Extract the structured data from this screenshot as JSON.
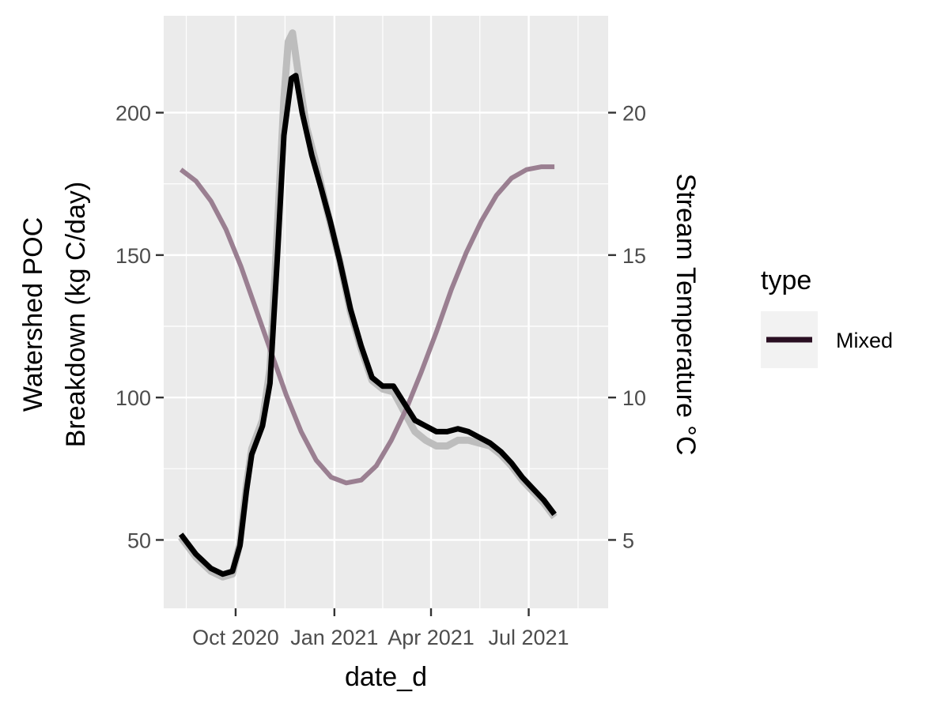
{
  "chart_data": {
    "type": "line",
    "x_axis": {
      "label": "date_d",
      "ticks": [
        "2020-10-01",
        "2021-01-01",
        "2021-04-01",
        "2021-07-01"
      ],
      "tick_labels": [
        "Oct 2020",
        "Jan 2021",
        "Apr 2021",
        "Jul 2021"
      ],
      "range": [
        "2020-07-26",
        "2021-09-13"
      ]
    },
    "y_left": {
      "label_lines": [
        "Watershed POC",
        "Breakdown (kg C/day)"
      ],
      "ticks": [
        50,
        100,
        150,
        200
      ],
      "range": [
        26,
        234
      ]
    },
    "y_right": {
      "label": "Stream Temperature °C",
      "ticks": [
        5,
        10,
        15,
        20
      ],
      "range": [
        2.6,
        23.4
      ]
    },
    "grid": true,
    "legend": {
      "title": "type",
      "position": "right",
      "entries": [
        {
          "label": "Mixed",
          "color": "#2a0f22"
        }
      ]
    },
    "series": [
      {
        "name": "Mixed",
        "axis": "left",
        "color": "#000000",
        "points": [
          [
            "2020-08-11",
            52
          ],
          [
            "2020-08-25",
            45
          ],
          [
            "2020-09-08",
            40
          ],
          [
            "2020-09-19",
            38
          ],
          [
            "2020-09-28",
            39
          ],
          [
            "2020-10-05",
            48
          ],
          [
            "2020-10-11",
            67
          ],
          [
            "2020-10-16",
            80
          ],
          [
            "2020-10-26",
            90
          ],
          [
            "2020-11-02",
            105
          ],
          [
            "2020-11-09",
            150
          ],
          [
            "2020-11-15",
            192
          ],
          [
            "2020-11-22",
            212
          ],
          [
            "2020-11-26",
            213
          ],
          [
            "2020-12-02",
            200
          ],
          [
            "2020-12-11",
            185
          ],
          [
            "2020-12-20",
            173
          ],
          [
            "2020-12-28",
            162
          ],
          [
            "2021-01-06",
            148
          ],
          [
            "2021-01-16",
            131
          ],
          [
            "2021-01-26",
            118
          ],
          [
            "2021-02-05",
            107
          ],
          [
            "2021-02-15",
            104
          ],
          [
            "2021-02-25",
            104
          ],
          [
            "2021-03-07",
            98
          ],
          [
            "2021-03-17",
            92
          ],
          [
            "2021-03-27",
            90
          ],
          [
            "2021-04-06",
            88
          ],
          [
            "2021-04-16",
            88
          ],
          [
            "2021-04-26",
            89
          ],
          [
            "2021-05-06",
            88
          ],
          [
            "2021-05-16",
            86
          ],
          [
            "2021-05-26",
            84
          ],
          [
            "2021-06-05",
            81
          ],
          [
            "2021-06-15",
            77
          ],
          [
            "2021-06-25",
            72
          ],
          [
            "2021-07-05",
            68
          ],
          [
            "2021-07-15",
            64
          ],
          [
            "2021-07-25",
            59
          ]
        ]
      },
      {
        "name": "",
        "axis": "left",
        "color": "#bdbdbd",
        "points": [
          [
            "2020-08-11",
            51
          ],
          [
            "2020-08-25",
            44
          ],
          [
            "2020-09-08",
            39
          ],
          [
            "2020-09-19",
            37
          ],
          [
            "2020-09-28",
            38
          ],
          [
            "2020-10-05",
            49
          ],
          [
            "2020-10-11",
            69
          ],
          [
            "2020-10-16",
            82
          ],
          [
            "2020-10-26",
            92
          ],
          [
            "2020-11-02",
            110
          ],
          [
            "2020-11-09",
            160
          ],
          [
            "2020-11-15",
            205
          ],
          [
            "2020-11-19",
            225
          ],
          [
            "2020-11-23",
            228
          ],
          [
            "2020-11-29",
            212
          ],
          [
            "2020-12-06",
            195
          ],
          [
            "2020-12-15",
            182
          ],
          [
            "2020-12-25",
            166
          ],
          [
            "2021-01-06",
            148
          ],
          [
            "2021-01-16",
            130
          ],
          [
            "2021-01-26",
            117
          ],
          [
            "2021-02-05",
            106
          ],
          [
            "2021-02-15",
            103
          ],
          [
            "2021-02-25",
            102
          ],
          [
            "2021-03-07",
            95
          ],
          [
            "2021-03-17",
            88
          ],
          [
            "2021-03-27",
            85
          ],
          [
            "2021-04-06",
            83
          ],
          [
            "2021-04-16",
            83
          ],
          [
            "2021-04-26",
            85
          ],
          [
            "2021-05-06",
            85
          ],
          [
            "2021-05-16",
            84
          ],
          [
            "2021-05-26",
            83
          ],
          [
            "2021-06-05",
            80
          ],
          [
            "2021-06-15",
            76
          ],
          [
            "2021-06-25",
            71
          ],
          [
            "2021-07-05",
            67
          ],
          [
            "2021-07-15",
            63
          ],
          [
            "2021-07-25",
            58
          ]
        ]
      },
      {
        "name": "",
        "axis": "right",
        "color": "#9a7f91",
        "points": [
          [
            "2020-08-11",
            18.0
          ],
          [
            "2020-08-25",
            17.6
          ],
          [
            "2020-09-08",
            16.9
          ],
          [
            "2020-09-22",
            15.9
          ],
          [
            "2020-10-06",
            14.6
          ],
          [
            "2020-10-20",
            13.1
          ],
          [
            "2020-11-03",
            11.6
          ],
          [
            "2020-11-17",
            10.1
          ],
          [
            "2020-12-01",
            8.8
          ],
          [
            "2020-12-15",
            7.8
          ],
          [
            "2020-12-29",
            7.2
          ],
          [
            "2021-01-12",
            7.0
          ],
          [
            "2021-01-26",
            7.1
          ],
          [
            "2021-02-09",
            7.6
          ],
          [
            "2021-02-23",
            8.5
          ],
          [
            "2021-03-09",
            9.6
          ],
          [
            "2021-03-23",
            10.9
          ],
          [
            "2021-04-06",
            12.3
          ],
          [
            "2021-04-20",
            13.8
          ],
          [
            "2021-05-04",
            15.1
          ],
          [
            "2021-05-18",
            16.2
          ],
          [
            "2021-06-01",
            17.1
          ],
          [
            "2021-06-15",
            17.7
          ],
          [
            "2021-06-29",
            18.0
          ],
          [
            "2021-07-13",
            18.1
          ],
          [
            "2021-07-25",
            18.1
          ]
        ]
      }
    ]
  }
}
